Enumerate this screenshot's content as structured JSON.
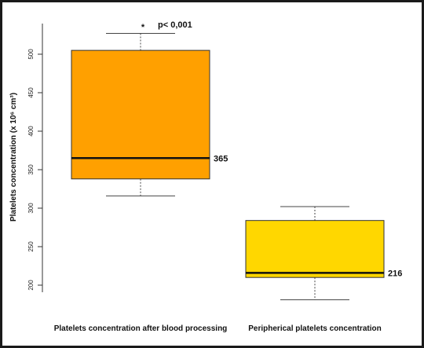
{
  "chart_data": {
    "type": "box",
    "title": "",
    "ylabel": "Platelets concentration  (x 10⁶ cm³)",
    "xlabel": "",
    "ylim": [
      180,
      540
    ],
    "y_ticks": [
      200,
      250,
      300,
      350,
      400,
      450,
      500
    ],
    "categories": [
      "Platelets concentration  after blood processing",
      "Peripherical  platelets concentration"
    ],
    "boxes": [
      {
        "whisker_low": 316,
        "q1": 338,
        "median": 365,
        "q3": 505,
        "whisker_high": 527,
        "median_label": "365",
        "fill": "#FFA000"
      },
      {
        "whisker_low": 181,
        "q1": 210,
        "median": 216,
        "q3": 284,
        "whisker_high": 302,
        "median_label": "216",
        "fill": "#FFD700"
      }
    ],
    "annotation": {
      "star": "*",
      "text": "p< 0,001"
    },
    "grid": false
  }
}
